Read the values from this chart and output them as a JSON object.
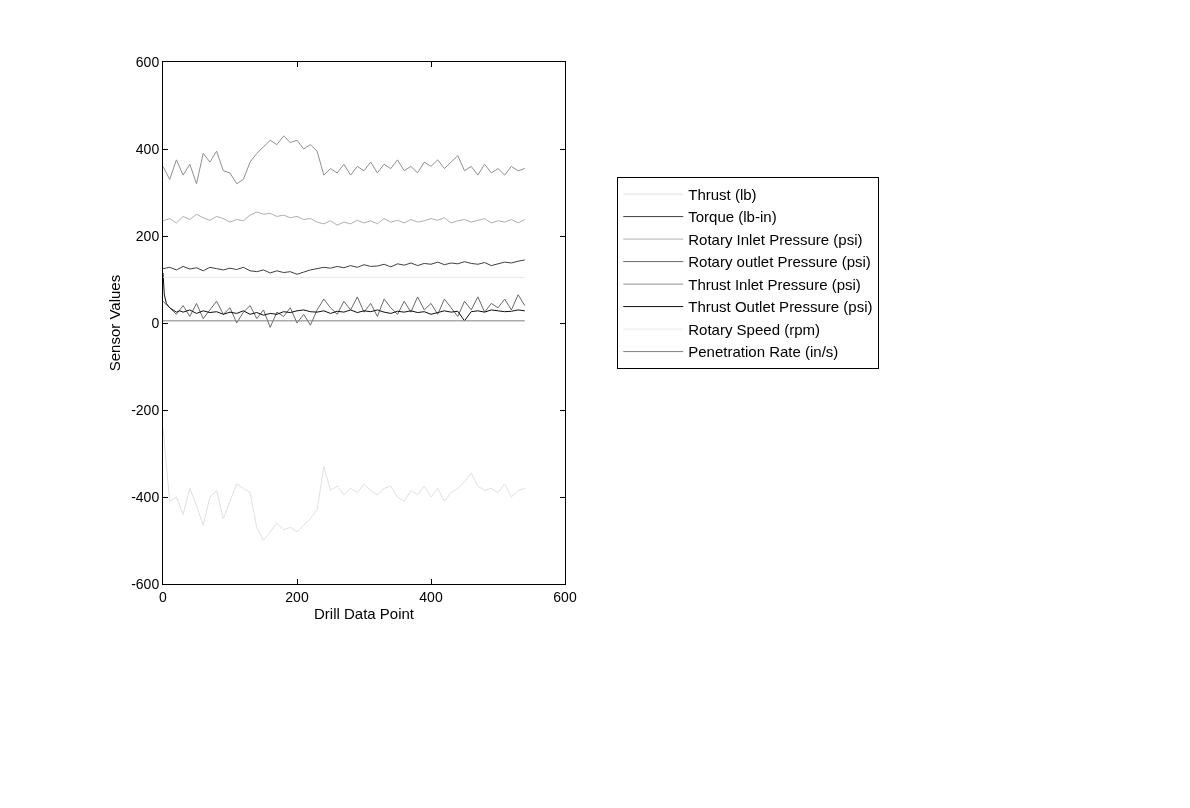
{
  "chart_data": {
    "type": "line",
    "xlabel": "Drill Data Point",
    "ylabel": "Sensor Values",
    "xlim": [
      0,
      600
    ],
    "xticks": [
      0,
      200,
      400,
      600
    ],
    "ylim": [
      -600,
      600
    ],
    "yticks": [
      -600,
      -400,
      -200,
      0,
      200,
      400,
      600
    ],
    "grid": false,
    "legend": "right",
    "marker": "none",
    "line_style": "solid",
    "series": [
      {
        "name": "Thrust (lb)",
        "color": "#e0e0e0",
        "x": [
          0,
          10,
          20,
          30,
          40,
          50,
          60,
          70,
          80,
          90,
          100,
          110,
          120,
          130,
          140,
          150,
          160,
          170,
          180,
          190,
          200,
          210,
          220,
          230,
          240,
          250,
          260,
          270,
          280,
          290,
          300,
          310,
          320,
          330,
          340,
          350,
          360,
          370,
          380,
          390,
          400,
          410,
          420,
          430,
          440,
          450,
          460,
          470,
          480,
          490,
          500,
          510,
          520,
          530,
          540
        ],
        "values": [
          -240,
          -410,
          -400,
          -440,
          -380,
          -420,
          -465,
          -400,
          -385,
          -450,
          -410,
          -370,
          -380,
          -390,
          -470,
          -500,
          -480,
          -460,
          -475,
          -470,
          -480,
          -465,
          -450,
          -430,
          -330,
          -385,
          -375,
          -395,
          -380,
          -390,
          -370,
          -385,
          -395,
          -380,
          -375,
          -400,
          -410,
          -385,
          -395,
          -375,
          -400,
          -380,
          -410,
          -390,
          -380,
          -365,
          -345,
          -375,
          -385,
          -380,
          -390,
          -370,
          -400,
          -385,
          -380
        ]
      },
      {
        "name": "Torque (lb-in)",
        "color": "#404040",
        "x": [
          0,
          10,
          20,
          30,
          40,
          50,
          60,
          70,
          80,
          90,
          100,
          110,
          120,
          130,
          140,
          150,
          160,
          170,
          180,
          190,
          200,
          210,
          220,
          230,
          240,
          250,
          260,
          270,
          280,
          290,
          300,
          310,
          320,
          330,
          340,
          350,
          360,
          370,
          380,
          390,
          400,
          410,
          420,
          430,
          440,
          450,
          460,
          470,
          480,
          490,
          500,
          510,
          520,
          530,
          540
        ],
        "values": [
          125,
          128,
          122,
          130,
          124,
          127,
          120,
          128,
          125,
          122,
          126,
          123,
          128,
          120,
          118,
          122,
          115,
          120,
          116,
          118,
          112,
          117,
          122,
          125,
          128,
          126,
          130,
          127,
          132,
          128,
          134,
          130,
          131,
          135,
          129,
          136,
          133,
          138,
          132,
          137,
          135,
          140,
          134,
          138,
          136,
          141,
          137,
          135,
          139,
          132,
          136,
          140,
          138,
          142,
          145
        ]
      },
      {
        "name": "Rotary Inlet Pressure (psi)",
        "color": "#b0b0b0",
        "x": [
          0,
          10,
          20,
          30,
          40,
          50,
          60,
          70,
          80,
          90,
          100,
          110,
          120,
          130,
          140,
          150,
          160,
          170,
          180,
          190,
          200,
          210,
          220,
          230,
          240,
          250,
          260,
          270,
          280,
          290,
          300,
          310,
          320,
          330,
          340,
          350,
          360,
          370,
          380,
          390,
          400,
          410,
          420,
          430,
          440,
          450,
          460,
          470,
          480,
          490,
          500,
          510,
          520,
          530,
          540
        ],
        "values": [
          235,
          240,
          230,
          245,
          238,
          250,
          242,
          236,
          245,
          240,
          232,
          238,
          235,
          248,
          255,
          250,
          252,
          245,
          248,
          242,
          245,
          238,
          240,
          232,
          228,
          235,
          225,
          232,
          228,
          236,
          230,
          235,
          228,
          240,
          232,
          236,
          230,
          238,
          232,
          235,
          240,
          236,
          242,
          230,
          235,
          238,
          232,
          236,
          240,
          230,
          235,
          232,
          238,
          230,
          238
        ]
      },
      {
        "name": "Rotary outlet Pressure (psi)",
        "color": "#6a6a6a",
        "x": [
          0,
          10,
          20,
          30,
          40,
          50,
          60,
          70,
          80,
          90,
          100,
          110,
          120,
          130,
          140,
          150,
          160,
          170,
          180,
          190,
          200,
          210,
          220,
          230,
          240,
          250,
          260,
          270,
          280,
          290,
          300,
          310,
          320,
          330,
          340,
          350,
          360,
          370,
          380,
          390,
          400,
          410,
          420,
          430,
          440,
          450,
          460,
          470,
          480,
          490,
          500,
          510,
          520,
          530,
          540
        ],
        "values": [
          50,
          35,
          20,
          40,
          15,
          45,
          10,
          30,
          50,
          20,
          35,
          0,
          25,
          40,
          10,
          30,
          -10,
          25,
          15,
          35,
          0,
          20,
          -5,
          30,
          55,
          35,
          20,
          50,
          30,
          60,
          25,
          45,
          15,
          55,
          35,
          20,
          50,
          25,
          60,
          30,
          45,
          20,
          55,
          35,
          15,
          50,
          30,
          60,
          25,
          45,
          35,
          55,
          30,
          65,
          40
        ]
      },
      {
        "name": "Thrust Inlet Pressure (psi)",
        "color": "#909090",
        "x": [
          0,
          10,
          20,
          30,
          40,
          50,
          60,
          70,
          80,
          90,
          100,
          110,
          120,
          130,
          140,
          150,
          160,
          170,
          180,
          190,
          200,
          210,
          220,
          230,
          240,
          250,
          260,
          270,
          280,
          290,
          300,
          310,
          320,
          330,
          340,
          350,
          360,
          370,
          380,
          390,
          400,
          410,
          420,
          430,
          440,
          450,
          460,
          470,
          480,
          490,
          500,
          510,
          520,
          530,
          540
        ],
        "values": [
          360,
          330,
          375,
          340,
          365,
          320,
          390,
          370,
          395,
          350,
          345,
          320,
          330,
          370,
          390,
          405,
          420,
          410,
          430,
          415,
          420,
          400,
          410,
          395,
          340,
          355,
          345,
          365,
          340,
          360,
          350,
          370,
          345,
          365,
          355,
          375,
          350,
          360,
          345,
          370,
          360,
          375,
          355,
          370,
          385,
          350,
          360,
          340,
          365,
          345,
          355,
          340,
          360,
          350,
          355
        ]
      },
      {
        "name": "Thrust Outlet Pressure (psi)",
        "color": "#101010",
        "x": [
          0,
          2,
          5,
          10,
          15,
          20,
          25,
          30,
          40,
          50,
          60,
          70,
          80,
          90,
          100,
          110,
          120,
          130,
          140,
          150,
          160,
          170,
          180,
          190,
          200,
          210,
          220,
          230,
          240,
          250,
          260,
          270,
          280,
          290,
          300,
          310,
          320,
          330,
          340,
          350,
          360,
          370,
          380,
          390,
          400,
          410,
          420,
          430,
          440,
          450,
          460,
          470,
          480,
          490,
          500,
          510,
          520,
          530,
          540
        ],
        "values": [
          115,
          65,
          45,
          35,
          30,
          25,
          28,
          25,
          30,
          22,
          28,
          24,
          26,
          20,
          25,
          22,
          28,
          20,
          24,
          18,
          22,
          20,
          26,
          24,
          28,
          30,
          26,
          25,
          28,
          22,
          27,
          25,
          30,
          24,
          28,
          26,
          30,
          25,
          22,
          27,
          25,
          28,
          24,
          26,
          20,
          24,
          28,
          25,
          27,
          5,
          26,
          28,
          25,
          30,
          28,
          26,
          27,
          30,
          28
        ]
      },
      {
        "name": "Rotary Speed (rpm)",
        "color": "#e8e8e8",
        "x": [
          0,
          540
        ],
        "values": [
          105,
          105
        ]
      },
      {
        "name": "Penetration Rate (in/s)",
        "color": "#808080",
        "x": [
          0,
          540
        ],
        "values": [
          5,
          5
        ]
      }
    ]
  }
}
